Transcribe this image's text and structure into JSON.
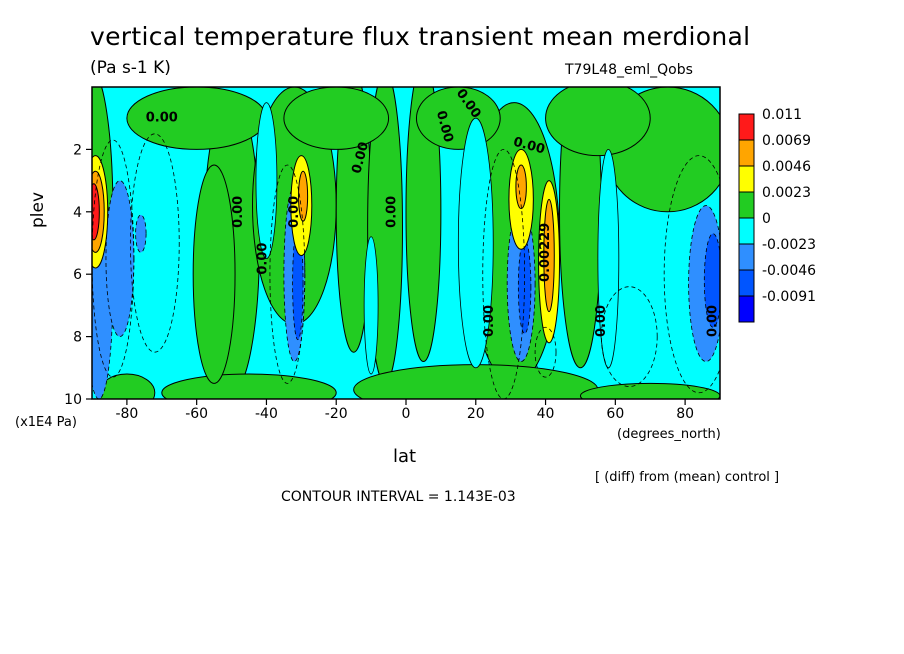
{
  "chart_data": {
    "type": "heatmap",
    "title": "vertical temperature flux transient mean merdional",
    "units": "(Pa s-1 K)",
    "run_label": "T79L48_eml_Qobs",
    "xlabel": "lat",
    "x_unit": "(degrees_north)",
    "ylabel": "plev",
    "y_unit": "(x1E4 Pa)",
    "xlim": [
      -90,
      90
    ],
    "ylim": [
      10,
      0
    ],
    "x_ticks": [
      -80,
      -60,
      -40,
      -20,
      0,
      20,
      40,
      60,
      80
    ],
    "x_tick_labels": [
      "-80",
      "-60",
      "-40",
      "-20",
      "0",
      "20",
      "40",
      "60",
      "80"
    ],
    "y_ticks": [
      2,
      4,
      6,
      8,
      10
    ],
    "y_tick_labels": [
      "2",
      "4",
      "6",
      "8",
      "10"
    ],
    "legend": {
      "labels": [
        "0.011",
        "0.0069",
        "0.0046",
        "0.0023",
        "0",
        "-0.0023",
        "-0.0046",
        "-0.0091"
      ],
      "colors": [
        "#ff1a1a",
        "#ffa500",
        "#ffff00",
        "#22cc22",
        "#00ffff",
        "#2f8fff",
        "#0055ff",
        "#0000ff"
      ]
    },
    "fill_colors": {
      "strong_pos": "#ff1a1a",
      "pos2": "#ffa500",
      "pos1": "#ffff00",
      "pos0": "#22cc22",
      "neg0": "#00ffff",
      "neg1": "#2f8fff",
      "neg2": "#0055ff"
    },
    "contour_labels": [
      "0.00",
      "0.00229"
    ],
    "features": [
      {
        "lat": -88,
        "plev": 4,
        "sign": "positive",
        "level": "strong"
      },
      {
        "lat": -80,
        "plev": 6,
        "sign": "negative",
        "level": "medium"
      },
      {
        "lat": -30,
        "plev": 3.6,
        "sign": "positive",
        "level": "medium"
      },
      {
        "lat": -33,
        "plev": 6,
        "sign": "negative",
        "level": "medium"
      },
      {
        "lat": 33,
        "plev": 3.5,
        "sign": "positive",
        "level": "medium"
      },
      {
        "lat": 40,
        "plev": 6,
        "sign": "positive",
        "level": "medium"
      },
      {
        "lat": 33,
        "plev": 6.5,
        "sign": "negative",
        "level": "medium"
      },
      {
        "lat": 85,
        "plev": 6.2,
        "sign": "negative",
        "level": "medium"
      }
    ],
    "contour_interval_text": "CONTOUR INTERVAL = 1.143E-03",
    "note": "[ (diff) from (mean) control ]"
  }
}
